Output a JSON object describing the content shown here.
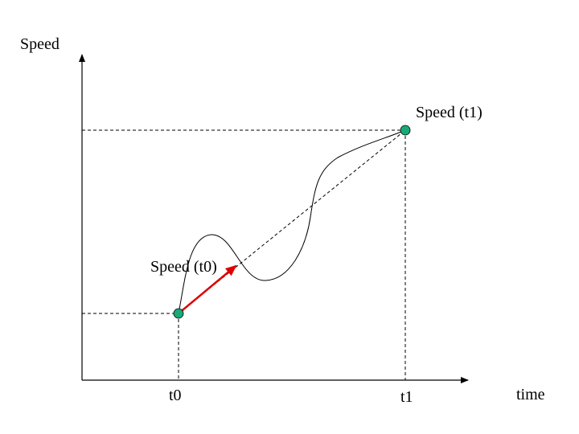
{
  "y_axis_label": "Speed",
  "x_axis_label": "time",
  "ticks": [
    "t0",
    "t1"
  ],
  "points": [
    {
      "label": "Speed (t0)"
    },
    {
      "label": "Speed (t1)"
    }
  ]
}
